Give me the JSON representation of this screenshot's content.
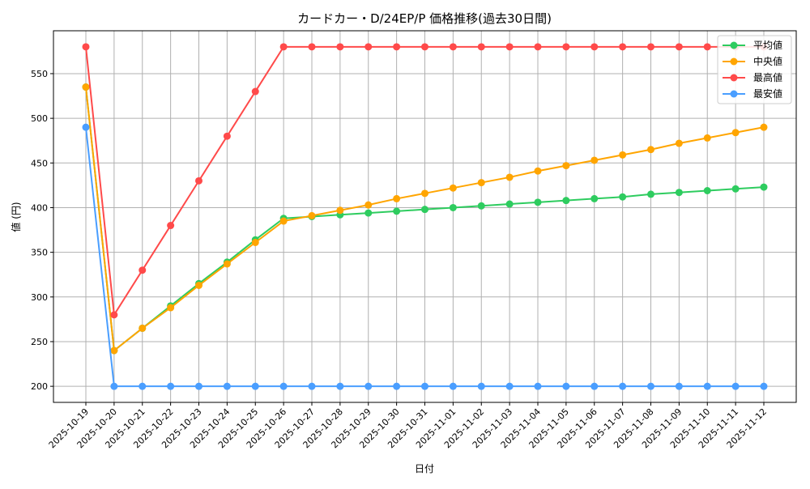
{
  "chart_data": {
    "type": "line",
    "title": "カードカー・D/24EP/P 価格推移(過去30日間)",
    "xlabel": "日付",
    "ylabel": "値 (円)",
    "ylim": [
      182,
      598
    ],
    "yticks": [
      200,
      250,
      300,
      350,
      400,
      450,
      500,
      550
    ],
    "grid": true,
    "legend_position": "top-right",
    "categories": [
      "2025-10-19",
      "2025-10-20",
      "2025-10-21",
      "2025-10-22",
      "2025-10-23",
      "2025-10-24",
      "2025-10-25",
      "2025-10-26",
      "2025-10-27",
      "2025-10-28",
      "2025-10-29",
      "2025-10-30",
      "2025-10-31",
      "2025-11-01",
      "2025-11-02",
      "2025-11-03",
      "2025-11-04",
      "2025-11-05",
      "2025-11-06",
      "2025-11-07",
      "2025-11-08",
      "2025-11-09",
      "2025-11-10",
      "2025-11-11",
      "2025-11-12"
    ],
    "series": [
      {
        "name": "平均値",
        "color": "#2ecc5f",
        "values": [
          535,
          240,
          265,
          290,
          315,
          339,
          364,
          388,
          390,
          392,
          394,
          396,
          398,
          400,
          402,
          404,
          406,
          408,
          410,
          412,
          415,
          417,
          419,
          421,
          423
        ]
      },
      {
        "name": "中央値",
        "color": "#ffa500",
        "values": [
          535,
          240,
          265,
          288,
          313,
          337,
          361,
          385,
          391,
          397,
          403,
          410,
          416,
          422,
          428,
          434,
          441,
          447,
          453,
          459,
          465,
          472,
          478,
          484,
          490
        ]
      },
      {
        "name": "最高値",
        "color": "#ff4a4a",
        "values": [
          580,
          280,
          330,
          380,
          430,
          480,
          530,
          580,
          580,
          580,
          580,
          580,
          580,
          580,
          580,
          580,
          580,
          580,
          580,
          580,
          580,
          580,
          580,
          580,
          580
        ]
      },
      {
        "name": "最安値",
        "color": "#4a9eff",
        "values": [
          490,
          200,
          200,
          200,
          200,
          200,
          200,
          200,
          200,
          200,
          200,
          200,
          200,
          200,
          200,
          200,
          200,
          200,
          200,
          200,
          200,
          200,
          200,
          200,
          200
        ]
      }
    ]
  }
}
